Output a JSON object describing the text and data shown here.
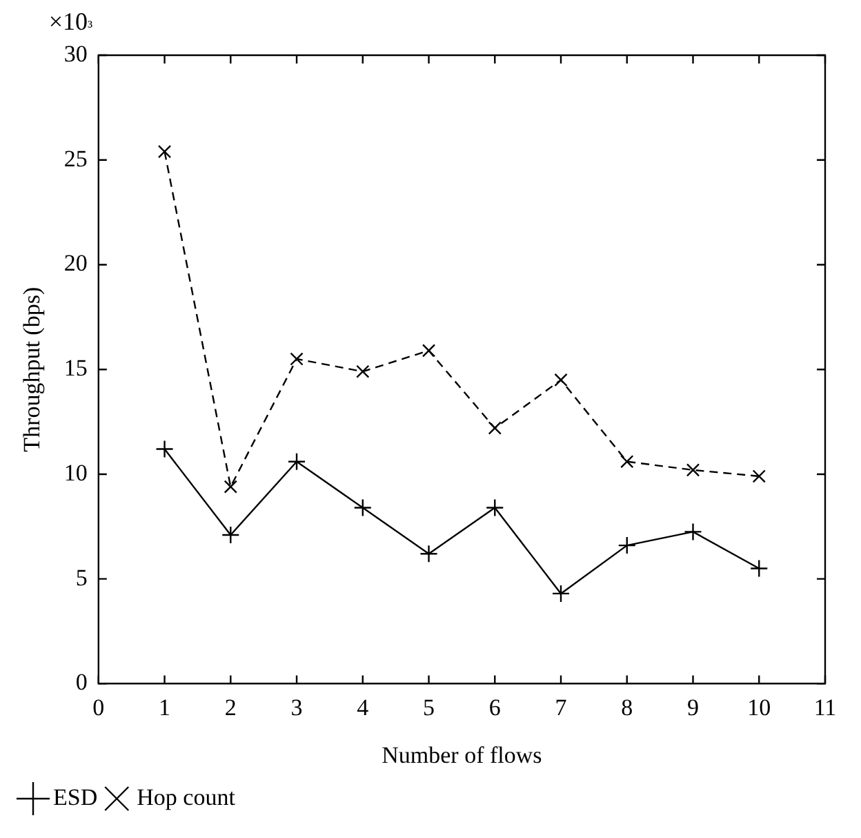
{
  "chart_data": {
    "type": "line",
    "xlabel": "Number of flows",
    "ylabel": "Throughput (bps)",
    "annotations": [
      "×10³"
    ],
    "x": [
      1,
      2,
      3,
      4,
      5,
      6,
      7,
      8,
      9,
      10
    ],
    "series": [
      {
        "name": "ESD",
        "color": "#000000",
        "marker": "cross",
        "line_style": "solid",
        "values": [
          11.2,
          7.1,
          10.6,
          8.4,
          6.2,
          8.4,
          4.3,
          6.6,
          7.25,
          5.5
        ]
      },
      {
        "name": "Hop count",
        "color": "#000000",
        "marker": "x",
        "line_style": "dashed",
        "values": [
          25.4,
          9.4,
          15.5,
          14.9,
          15.9,
          12.2,
          14.5,
          10.6,
          10.2,
          9.9
        ]
      }
    ],
    "xlim": [
      0,
      11
    ],
    "xticks": [
      0,
      1,
      2,
      3,
      4,
      5,
      6,
      7,
      8,
      9,
      10,
      11
    ],
    "ylim": [
      0,
      30
    ],
    "yticks": [
      0,
      5,
      10,
      15,
      20,
      25,
      30
    ],
    "grid": false,
    "legend": "bottom left"
  }
}
